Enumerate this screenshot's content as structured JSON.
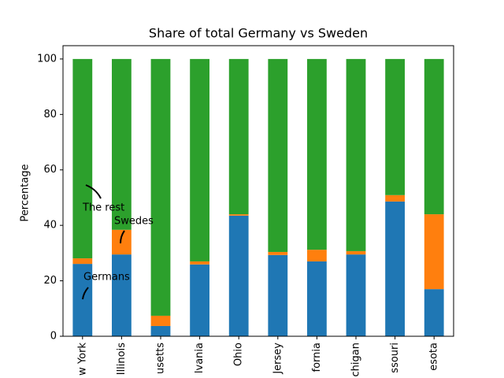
{
  "chart_data": {
    "type": "stacked_bar",
    "title": "Share of total Germany vs Sweden",
    "y_label": "Percentage",
    "categories": [
      "w York",
      "Illinois",
      "usetts",
      "lvania",
      "Ohio",
      "Jersey",
      "fornia",
      "chigan",
      "ssouri",
      "esota"
    ],
    "series": [
      {
        "color": "#1f77b4",
        "values": [
          26.1,
          29.5,
          3.7,
          25.9,
          43.5,
          29.3,
          27.0,
          29.5,
          48.6,
          17.0
        ]
      },
      {
        "color": "#ff7f0e",
        "values": [
          2.0,
          8.9,
          3.7,
          1.1,
          0.5,
          1.1,
          4.2,
          1.2,
          2.3,
          27.0
        ]
      },
      {
        "color": "#2ca02c",
        "values": [
          71.9,
          61.6,
          92.6,
          73.0,
          56.0,
          69.6,
          68.8,
          69.3,
          49.1,
          56.0
        ]
      }
    ],
    "annotations": [
      "Germans",
      "Swedes",
      "The rest"
    ],
    "ylim": [
      0,
      104.8
    ],
    "yticks": [
      0,
      20,
      40,
      60,
      80,
      100
    ]
  }
}
